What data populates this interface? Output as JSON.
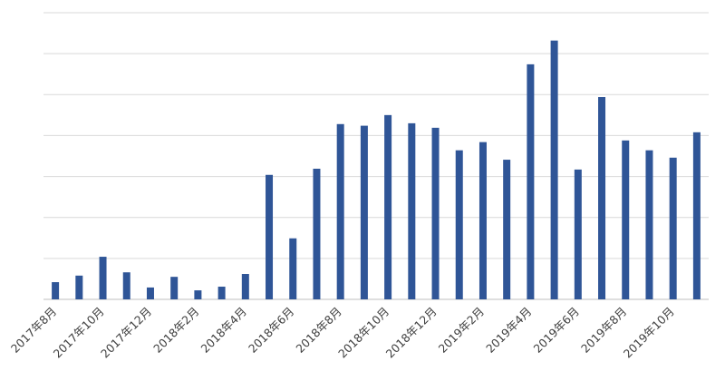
{
  "chart_data": {
    "type": "bar",
    "categories": [
      "2017年8月",
      null,
      "2017年10月",
      null,
      "2017年12月",
      null,
      "2018年2月",
      null,
      "2018年4月",
      null,
      "2018年6月",
      null,
      "2018年8月",
      null,
      "2018年10月",
      null,
      "2018年12月",
      null,
      "2019年2月",
      null,
      "2019年4月",
      null,
      "2019年6月",
      null,
      "2019年8月",
      null,
      "2019年10月",
      null
    ],
    "values": [
      0.42,
      0.58,
      1.04,
      0.66,
      0.29,
      0.55,
      0.22,
      0.31,
      0.62,
      3.04,
      1.49,
      3.19,
      4.28,
      4.24,
      4.5,
      4.3,
      4.19,
      3.64,
      3.84,
      3.41,
      5.74,
      6.32,
      3.17,
      4.94,
      3.88,
      3.64,
      3.46,
      4.08
    ],
    "color": "#2f5597",
    "ylim": [
      0,
      7
    ],
    "grid_lines": [
      0,
      1,
      2,
      3,
      4,
      5,
      6,
      7
    ],
    "grid": true
  }
}
